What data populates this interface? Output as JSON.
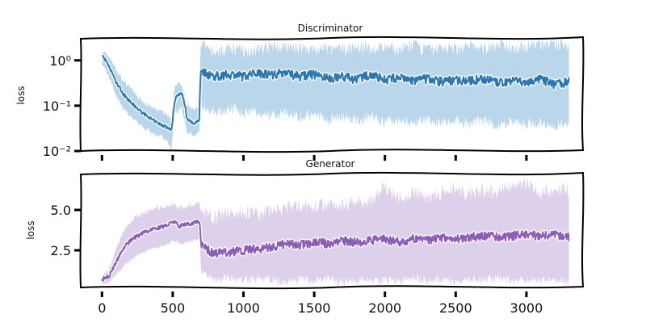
{
  "chart_data": [
    {
      "type": "line",
      "title": "Discriminator",
      "ylabel": "loss",
      "xlabel": "",
      "yscale": "log",
      "xlim": [
        -150,
        3400
      ],
      "ylim": [
        0.01,
        3
      ],
      "yticks": [
        {
          "value": 1,
          "label": "10⁰"
        },
        {
          "value": 0.1,
          "label": "10⁻¹"
        },
        {
          "value": 0.01,
          "label": "10⁻²"
        }
      ],
      "xticks": [
        0,
        500,
        1000,
        1500,
        2000,
        2500,
        3000
      ],
      "show_xtick_labels": false,
      "line_color": "#2a77b4",
      "band_color": "#b9d6ea",
      "series": [
        {
          "x": [
            0,
            50,
            100,
            150,
            200,
            250,
            300,
            350,
            400,
            450,
            490,
            500,
            520,
            560,
            600,
            650,
            690,
            700,
            750,
            800,
            900,
            1000,
            1100,
            1200,
            1300,
            1400,
            1500,
            1600,
            1700,
            1800,
            1900,
            2000,
            2100,
            2200,
            2300,
            2400,
            2500,
            2600,
            2700,
            2800,
            2900,
            3000,
            3100,
            3200,
            3300
          ],
          "mean": [
            1.3,
            0.7,
            0.32,
            0.18,
            0.12,
            0.085,
            0.065,
            0.05,
            0.04,
            0.035,
            0.028,
            0.05,
            0.15,
            0.2,
            0.05,
            0.04,
            0.05,
            0.6,
            0.5,
            0.45,
            0.5,
            0.45,
            0.55,
            0.5,
            0.55,
            0.45,
            0.5,
            0.4,
            0.45,
            0.38,
            0.5,
            0.38,
            0.42,
            0.36,
            0.4,
            0.35,
            0.38,
            0.36,
            0.4,
            0.32,
            0.36,
            0.33,
            0.38,
            0.3,
            0.35
          ],
          "upper": [
            1.6,
            1.2,
            0.6,
            0.35,
            0.25,
            0.16,
            0.12,
            0.09,
            0.08,
            0.065,
            0.05,
            0.1,
            0.3,
            0.3,
            0.1,
            0.08,
            0.1,
            2.3,
            1.4,
            1.3,
            1.6,
            1.5,
            1.5,
            1.8,
            1.6,
            1.7,
            1.5,
            1.6,
            1.5,
            1.8,
            1.6,
            1.7,
            1.5,
            1.9,
            1.5,
            1.7,
            1.6,
            1.8,
            1.6,
            2.0,
            1.7,
            1.8,
            2.1,
            1.9,
            2.0
          ],
          "lower": [
            1.0,
            0.45,
            0.18,
            0.1,
            0.07,
            0.05,
            0.035,
            0.03,
            0.025,
            0.02,
            0.012,
            0.025,
            0.08,
            0.1,
            0.03,
            0.025,
            0.03,
            0.15,
            0.12,
            0.1,
            0.12,
            0.1,
            0.1,
            0.08,
            0.1,
            0.08,
            0.09,
            0.07,
            0.08,
            0.065,
            0.08,
            0.06,
            0.07,
            0.06,
            0.065,
            0.06,
            0.07,
            0.055,
            0.065,
            0.05,
            0.06,
            0.055,
            0.06,
            0.05,
            0.06
          ]
        }
      ]
    },
    {
      "type": "line",
      "title": "Generator",
      "ylabel": "loss",
      "xlabel": "",
      "yscale": "linear",
      "xlim": [
        -150,
        3400
      ],
      "ylim": [
        0.2,
        7.2
      ],
      "yticks": [
        {
          "value": 5,
          "label": "5.0"
        },
        {
          "value": 2.5,
          "label": "2.5"
        }
      ],
      "xticks": [
        0,
        500,
        1000,
        1500,
        2000,
        2500,
        3000
      ],
      "show_xtick_labels": true,
      "line_color": "#8c5db8",
      "band_color": "#ddd0ea",
      "series": [
        {
          "x": [
            0,
            50,
            100,
            150,
            200,
            250,
            300,
            350,
            400,
            450,
            500,
            550,
            600,
            650,
            690,
            700,
            750,
            800,
            900,
            1000,
            1100,
            1200,
            1300,
            1400,
            1500,
            1600,
            1700,
            1800,
            1900,
            2000,
            2100,
            2200,
            2300,
            2400,
            2500,
            2600,
            2700,
            2800,
            2900,
            3000,
            3100,
            3200,
            3300
          ],
          "mean": [
            0.7,
            0.9,
            1.8,
            2.6,
            3.1,
            3.4,
            3.6,
            3.8,
            3.9,
            4.0,
            4.3,
            4.0,
            4.1,
            4.2,
            4.3,
            2.9,
            2.5,
            2.3,
            2.4,
            2.5,
            2.6,
            2.7,
            2.9,
            2.8,
            3.0,
            2.9,
            3.1,
            3.0,
            3.1,
            3.2,
            3.0,
            3.2,
            3.1,
            3.3,
            3.2,
            3.3,
            3.4,
            3.3,
            3.4,
            3.5,
            3.4,
            3.5,
            3.3
          ],
          "upper": [
            0.9,
            1.3,
            2.6,
            3.6,
            4.2,
            4.6,
            4.8,
            5.0,
            5.1,
            5.2,
            5.3,
            5.1,
            5.2,
            5.3,
            5.4,
            4.8,
            4.6,
            4.5,
            4.7,
            4.8,
            4.6,
            4.9,
            5.0,
            5.2,
            5.1,
            5.3,
            5.2,
            5.5,
            5.4,
            6.3,
            5.6,
            6.1,
            5.7,
            5.9,
            6.2,
            5.8,
            6.1,
            6.0,
            6.4,
            6.6,
            6.0,
            6.2,
            6.1
          ],
          "lower": [
            0.5,
            0.6,
            1.1,
            1.6,
            2.0,
            2.3,
            2.5,
            2.7,
            2.8,
            2.9,
            3.2,
            3.0,
            3.1,
            3.2,
            3.3,
            1.5,
            1.2,
            0.9,
            1.1,
            0.9,
            1.1,
            1.0,
            0.8,
            1.0,
            0.9,
            1.1,
            0.8,
            1.0,
            0.9,
            1.0,
            0.8,
            1.1,
            0.9,
            1.0,
            0.8,
            1.0,
            0.9,
            1.1,
            0.8,
            1.0,
            0.9,
            1.0,
            0.9
          ]
        }
      ]
    }
  ]
}
